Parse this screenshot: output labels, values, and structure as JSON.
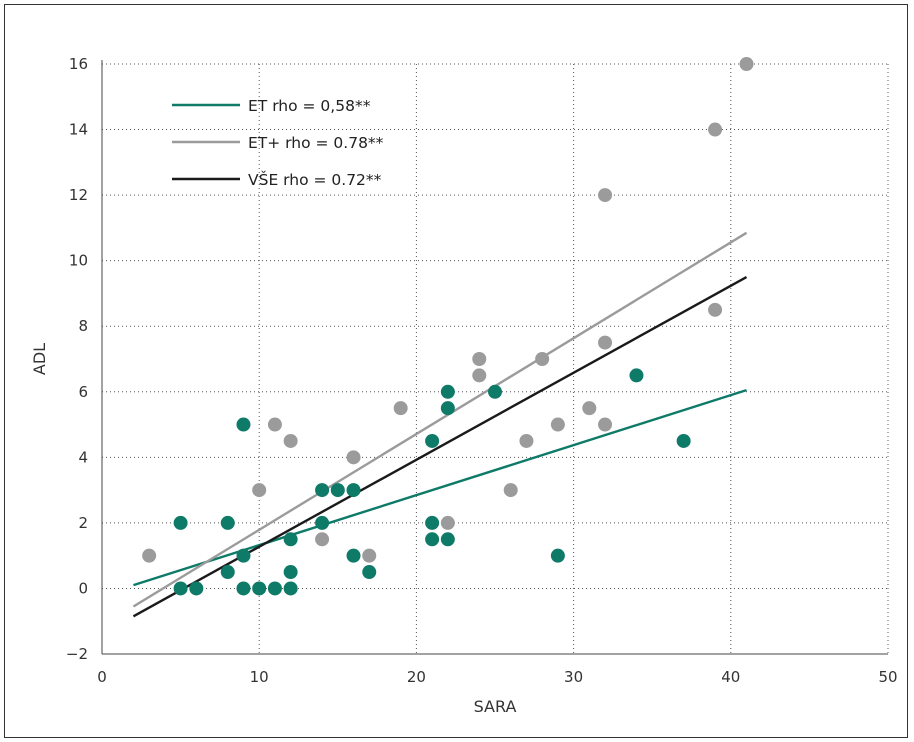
{
  "chart_data": {
    "type": "scatter",
    "title": "",
    "xlabel": "SARA",
    "ylabel": "ADL",
    "xlim": [
      0,
      50
    ],
    "ylim": [
      -2,
      16
    ],
    "x_ticks": [
      "0",
      "10",
      "20",
      "30",
      "40",
      "50"
    ],
    "y_ticks": [
      "−2",
      "0",
      "2",
      "4",
      "6",
      "8",
      "10",
      "12",
      "14",
      "16"
    ],
    "grid": true,
    "legend_position": "top-left",
    "series": [
      {
        "name": "ET",
        "color": "#0e7a68",
        "points": [
          [
            5,
            2
          ],
          [
            5,
            0
          ],
          [
            6,
            0
          ],
          [
            8,
            2
          ],
          [
            8,
            0.5
          ],
          [
            9,
            5
          ],
          [
            9,
            1
          ],
          [
            9,
            0
          ],
          [
            10,
            0
          ],
          [
            11,
            0
          ],
          [
            12,
            1.5
          ],
          [
            12,
            0.5
          ],
          [
            12,
            0
          ],
          [
            14,
            3
          ],
          [
            14,
            2
          ],
          [
            15,
            3
          ],
          [
            16,
            3
          ],
          [
            16,
            1
          ],
          [
            17,
            0.5
          ],
          [
            21,
            4.5
          ],
          [
            21,
            2
          ],
          [
            21,
            1.5
          ],
          [
            22,
            6
          ],
          [
            22,
            5.5
          ],
          [
            22,
            1.5
          ],
          [
            25,
            6
          ],
          [
            29,
            1
          ],
          [
            34,
            6.5
          ],
          [
            37,
            4.5
          ]
        ]
      },
      {
        "name": "ET+",
        "color": "#9b9b9b",
        "points": [
          [
            3,
            1
          ],
          [
            10,
            3
          ],
          [
            11,
            5
          ],
          [
            12,
            4.5
          ],
          [
            14,
            1.5
          ],
          [
            16,
            4
          ],
          [
            17,
            1
          ],
          [
            19,
            5.5
          ],
          [
            22,
            2
          ],
          [
            24,
            7
          ],
          [
            24,
            6.5
          ],
          [
            26,
            3
          ],
          [
            27,
            4.5
          ],
          [
            28,
            7
          ],
          [
            29,
            5
          ],
          [
            31,
            5.5
          ],
          [
            32,
            12
          ],
          [
            32,
            7.5
          ],
          [
            32,
            5
          ],
          [
            39,
            14
          ],
          [
            39,
            8.5
          ],
          [
            41,
            16
          ]
        ]
      }
    ],
    "fit_lines": [
      {
        "label": "ET rho = 0,58**",
        "color": "#0e7a68",
        "x": [
          2,
          41
        ],
        "y": [
          0.1,
          6.05
        ]
      },
      {
        "label": "ET+ rho = 0.78**",
        "color": "#9b9b9b",
        "x": [
          2,
          41
        ],
        "y": [
          -0.55,
          10.85
        ]
      },
      {
        "label": "VŠE rho = 0.72**",
        "color": "#1a1a1a",
        "x": [
          2,
          41
        ],
        "y": [
          -0.85,
          9.5
        ]
      }
    ]
  }
}
